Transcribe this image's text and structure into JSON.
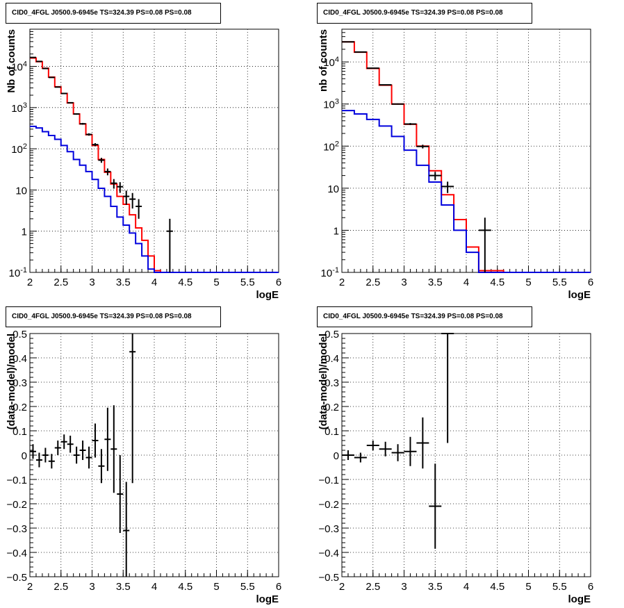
{
  "panels": [
    {
      "title": "CID0_4FGL J0500.9-6945e TS=324.39 PS=0.08 PS=0.08"
    },
    {
      "title": "CID0_4FGL J0500.9-6945e TS=324.39 PS=0.08 PS=0.08"
    },
    {
      "title": "CID0_4FGL J0500.9-6945e TS=324.39 PS=0.08 PS=0.08"
    },
    {
      "title": "CID0_4FGL J0500.9-6945e TS=324.39 PS=0.08 PS=0.08"
    }
  ],
  "colors": {
    "total_model": "#ff0000",
    "source_model": "#0000dd",
    "data": "#000000",
    "grid": "#000000"
  },
  "chart_data": [
    {
      "type": "line",
      "title": "CID0_4FGL J0500.9-6945e TS=324.39 PS=0.08 PS=0.08",
      "xlabel": "logE",
      "ylabel": "Nb of counts",
      "xlim": [
        2,
        6
      ],
      "ylim": [
        0.1,
        80000
      ],
      "yscale": "log",
      "grid": true,
      "x_ticks": [
        "2",
        "2.5",
        "3",
        "3.5",
        "4",
        "4.5",
        "5",
        "5.5",
        "6"
      ],
      "y_ticks": [
        "10^-1",
        "1",
        "10",
        "10^2",
        "10^3",
        "10^4"
      ],
      "bin_edges": [
        2.0,
        2.1,
        2.2,
        2.3,
        2.4,
        2.5,
        2.6,
        2.7,
        2.8,
        2.9,
        3.0,
        3.1,
        3.2,
        3.3,
        3.4,
        3.5,
        3.6,
        3.7,
        3.8,
        3.9,
        4.0,
        4.1,
        4.2,
        4.3,
        4.4,
        4.5,
        4.6,
        4.7,
        4.8,
        4.9,
        5.0,
        5.1,
        5.2,
        5.3,
        5.4,
        5.5,
        5.6,
        5.7,
        5.8,
        5.9,
        6.0
      ],
      "series": [
        {
          "role": "total_model",
          "values": [
            16000,
            13000,
            9000,
            5500,
            3200,
            2200,
            1300,
            700,
            400,
            220,
            120,
            55,
            27,
            14,
            7,
            4.5,
            2.5,
            1.2,
            0.6,
            0.25,
            0.11,
            0.1,
            0.1,
            0.1,
            0.1,
            0.1,
            0.1,
            0.1,
            0.1,
            0.1,
            0.1,
            0.1,
            0.1,
            0.1,
            0.1,
            0.1,
            0.1,
            0.1,
            0.1,
            0.1
          ]
        },
        {
          "role": "source_model",
          "values": [
            350,
            320,
            260,
            210,
            170,
            120,
            85,
            55,
            40,
            28,
            18,
            11,
            7,
            4,
            2.2,
            1.4,
            0.9,
            0.5,
            0.25,
            0.12,
            0.1,
            0.1,
            0.1,
            0.1,
            0.1,
            0.1,
            0.1,
            0.1,
            0.1,
            0.1,
            0.1,
            0.1,
            0.1,
            0.1,
            0.1,
            0.1,
            0.1,
            0.1,
            0.1,
            0.1
          ]
        },
        {
          "role": "data",
          "points": [
            {
              "x": 2.05,
              "y": 16500
            },
            {
              "x": 2.15,
              "y": 13200
            },
            {
              "x": 2.25,
              "y": 8900
            },
            {
              "x": 2.35,
              "y": 5400
            },
            {
              "x": 2.45,
              "y": 3150
            },
            {
              "x": 2.55,
              "y": 2200
            },
            {
              "x": 2.65,
              "y": 1310
            },
            {
              "x": 2.75,
              "y": 698
            },
            {
              "x": 2.85,
              "y": 404
            },
            {
              "x": 2.95,
              "y": 223
            },
            {
              "x": 3.05,
              "y": 126
            },
            {
              "x": 3.15,
              "y": 53
            },
            {
              "x": 3.25,
              "y": 28
            },
            {
              "x": 3.35,
              "y": 14.6
            },
            {
              "x": 3.45,
              "y": 12
            },
            {
              "x": 3.55,
              "y": 7
            },
            {
              "x": 3.65,
              "y": 6
            },
            {
              "x": 3.75,
              "y": 4
            },
            {
              "x": 4.25,
              "y": 1
            }
          ]
        }
      ]
    },
    {
      "type": "line",
      "title": "CID0_4FGL J0500.9-6945e TS=324.39 PS=0.08 PS=0.08",
      "xlabel": "logE",
      "ylabel": "nb of counts",
      "xlim": [
        2,
        6
      ],
      "ylim": [
        0.1,
        60000
      ],
      "yscale": "log",
      "grid": true,
      "x_ticks": [
        "2",
        "2.5",
        "3",
        "3.5",
        "4",
        "4.5",
        "5",
        "5.5",
        "6"
      ],
      "y_ticks": [
        "10^-1",
        "1",
        "10",
        "10^2",
        "10^3",
        "10^4"
      ],
      "bin_edges": [
        2.0,
        2.2,
        2.4,
        2.6,
        2.8,
        3.0,
        3.2,
        3.4,
        3.6,
        3.8,
        4.0,
        4.2,
        4.4,
        4.6,
        4.8,
        5.0,
        5.2,
        5.4,
        5.6,
        5.8,
        6.0
      ],
      "series": [
        {
          "role": "total_model",
          "values": [
            30000,
            17000,
            7000,
            2800,
            1000,
            330,
            100,
            26,
            7,
            1.8,
            0.4,
            0.11,
            0.11,
            0.1,
            0.1,
            0.1,
            0.1,
            0.1,
            0.1,
            0.1
          ]
        },
        {
          "role": "source_model",
          "values": [
            700,
            580,
            430,
            300,
            170,
            80,
            35,
            14,
            4,
            1,
            0.3,
            0.1,
            0.1,
            0.1,
            0.1,
            0.1,
            0.1,
            0.1,
            0.1,
            0.1
          ]
        },
        {
          "role": "data",
          "points": [
            {
              "x": 2.1,
              "y": 30000
            },
            {
              "x": 2.3,
              "y": 17200
            },
            {
              "x": 2.5,
              "y": 7100
            },
            {
              "x": 2.7,
              "y": 2850
            },
            {
              "x": 2.9,
              "y": 1000
            },
            {
              "x": 3.1,
              "y": 335
            },
            {
              "x": 3.3,
              "y": 98
            },
            {
              "x": 3.5,
              "y": 20
            },
            {
              "x": 3.7,
              "y": 11
            },
            {
              "x": 4.3,
              "y": 1
            }
          ]
        }
      ]
    },
    {
      "type": "scatter",
      "title": "CID0_4FGL J0500.9-6945e TS=324.39 PS=0.08 PS=0.08",
      "xlabel": "logE",
      "ylabel": "(data-model)/model",
      "xlim": [
        2,
        6
      ],
      "ylim": [
        -0.5,
        0.5
      ],
      "grid": true,
      "x_ticks": [
        "2",
        "2.5",
        "3",
        "3.5",
        "4",
        "4.5",
        "5",
        "5.5",
        "6"
      ],
      "y_ticks": [
        "-0.5",
        "-0.4",
        "-0.3",
        "-0.2",
        "-0.1",
        "0",
        "0.1",
        "0.2",
        "0.3",
        "0.4",
        "0.5"
      ],
      "points": [
        {
          "x": 2.05,
          "y": 0.015,
          "err": 0.03
        },
        {
          "x": 2.15,
          "y": -0.02,
          "err": 0.03
        },
        {
          "x": 2.25,
          "y": 0.0,
          "err": 0.03
        },
        {
          "x": 2.35,
          "y": -0.025,
          "err": 0.03
        },
        {
          "x": 2.45,
          "y": 0.03,
          "err": 0.03
        },
        {
          "x": 2.55,
          "y": 0.055,
          "err": 0.03
        },
        {
          "x": 2.65,
          "y": 0.045,
          "err": 0.035
        },
        {
          "x": 2.75,
          "y": 0.0,
          "err": 0.035
        },
        {
          "x": 2.85,
          "y": 0.02,
          "err": 0.04
        },
        {
          "x": 2.95,
          "y": -0.01,
          "err": 0.045
        },
        {
          "x": 3.05,
          "y": 0.06,
          "err": 0.07
        },
        {
          "x": 3.15,
          "y": -0.045,
          "err": 0.07
        },
        {
          "x": 3.25,
          "y": 0.065,
          "err": 0.13
        },
        {
          "x": 3.35,
          "y": 0.025,
          "err": 0.18
        },
        {
          "x": 3.45,
          "y": -0.16,
          "err": 0.16
        },
        {
          "x": 3.55,
          "y": -0.31,
          "err": 0.2
        },
        {
          "x": 3.65,
          "y": 0.425,
          "err": 0.54
        }
      ]
    },
    {
      "type": "scatter",
      "title": "CID0_4FGL J0500.9-6945e TS=324.39 PS=0.08 PS=0.08",
      "xlabel": "logE",
      "ylabel": "(data-model)/model",
      "xlim": [
        2,
        6
      ],
      "ylim": [
        -0.5,
        0.5
      ],
      "grid": true,
      "x_ticks": [
        "2",
        "2.5",
        "3",
        "3.5",
        "4",
        "4.5",
        "5",
        "5.5",
        "6"
      ],
      "y_ticks": [
        "-0.5",
        "-0.4",
        "-0.3",
        "-0.2",
        "-0.1",
        "0",
        "0.1",
        "0.2",
        "0.3",
        "0.4",
        "0.5"
      ],
      "points": [
        {
          "x": 2.1,
          "y": 0.0,
          "err": 0.02
        },
        {
          "x": 2.3,
          "y": -0.01,
          "err": 0.02
        },
        {
          "x": 2.5,
          "y": 0.04,
          "err": 0.02
        },
        {
          "x": 2.7,
          "y": 0.025,
          "err": 0.03
        },
        {
          "x": 2.9,
          "y": 0.01,
          "err": 0.035
        },
        {
          "x": 3.1,
          "y": 0.015,
          "err": 0.06
        },
        {
          "x": 3.3,
          "y": 0.05,
          "err": 0.105
        },
        {
          "x": 3.5,
          "y": -0.21,
          "err": 0.175
        },
        {
          "x": 3.7,
          "y": 0.5,
          "err": 0.45
        }
      ]
    }
  ]
}
